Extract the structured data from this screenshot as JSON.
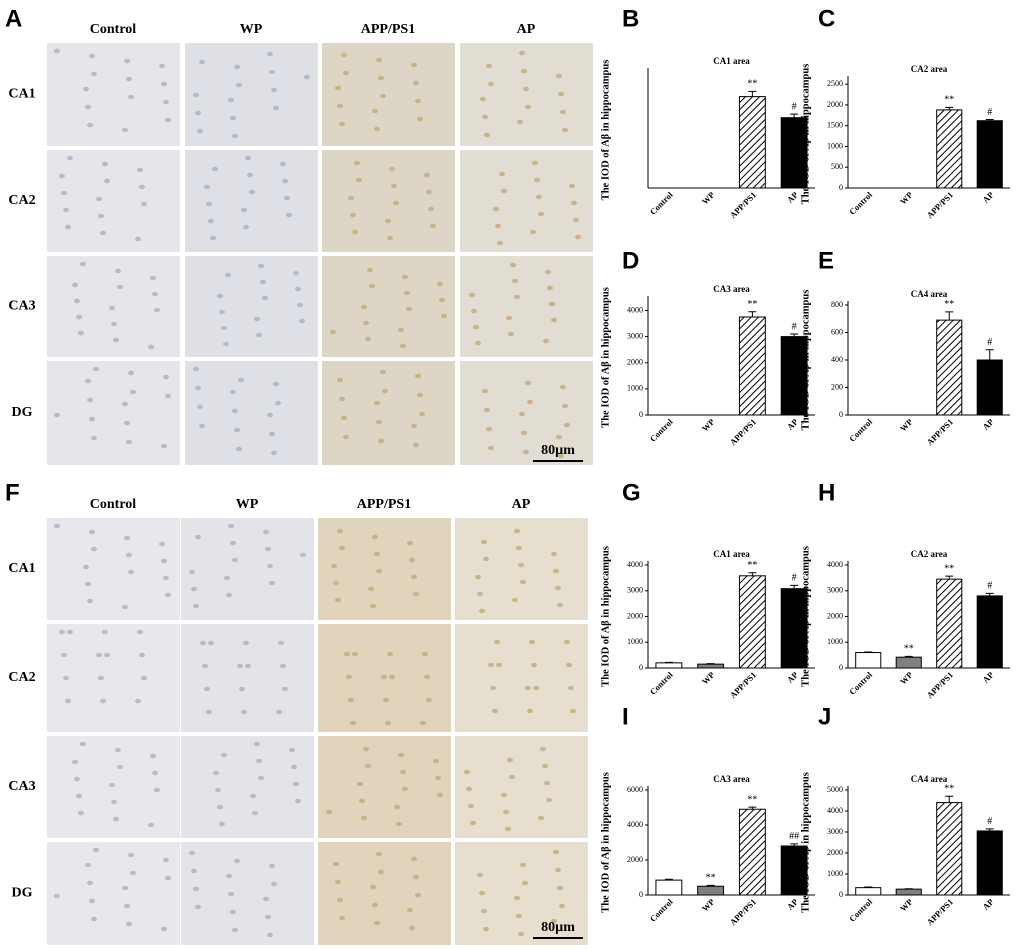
{
  "panels": [
    {
      "letter": "A",
      "columns": [
        "Control",
        "WP",
        "APP/PS1",
        "AP"
      ],
      "rows": [
        "CA1",
        "CA2",
        "CA3",
        "DG"
      ],
      "scale_bar": "80µm"
    },
    {
      "letter": "F",
      "columns": [
        "Control",
        "WP",
        "APP/PS1",
        "AP"
      ],
      "rows": [
        "CA1",
        "CA2",
        "CA3",
        "DG"
      ],
      "scale_bar": "80µm"
    }
  ],
  "chart_data": [
    {
      "type": "bar",
      "letter": "B",
      "title": "CA1 area",
      "y_label": "The IOD of Aβ in hippocampus",
      "categories": [
        "Control",
        "WP",
        "APP/PS1",
        "AP"
      ],
      "values": [
        0,
        0,
        2600,
        2000
      ],
      "errors": [
        0,
        0,
        150,
        100
      ],
      "annotations": [
        null,
        null,
        "**",
        "#"
      ],
      "fills": [
        "#ffffff",
        "#808080",
        "#ffffff",
        "#000000"
      ],
      "hatched": [
        false,
        false,
        true,
        false
      ],
      "ylim": [
        0,
        3300
      ]
    },
    {
      "type": "bar",
      "letter": "C",
      "title": "CA2 area",
      "y_label": "The IOD of Aβ in hippocampus",
      "categories": [
        "Control",
        "WP",
        "APP/PS1",
        "AP"
      ],
      "values": [
        0,
        0,
        1880,
        1620
      ],
      "errors": [
        0,
        0,
        60,
        30
      ],
      "annotations": [
        null,
        null,
        "**",
        "#"
      ],
      "fills": [
        "#ffffff",
        "#808080",
        "#ffffff",
        "#000000"
      ],
      "hatched": [
        false,
        false,
        true,
        false
      ],
      "ylim": [
        0,
        2600
      ],
      "yticks": [
        0,
        500,
        1000,
        1500,
        2000,
        2500
      ]
    },
    {
      "type": "bar",
      "letter": "D",
      "title": "CA3 area",
      "y_label": "The IOD of Aβ in hippocampus",
      "categories": [
        "Control",
        "WP",
        "APP/PS1",
        "AP"
      ],
      "values": [
        0,
        0,
        3750,
        3000
      ],
      "errors": [
        0,
        0,
        200,
        100
      ],
      "annotations": [
        null,
        null,
        "**",
        "#"
      ],
      "fills": [
        "#ffffff",
        "#808080",
        "#ffffff",
        "#000000"
      ],
      "hatched": [
        false,
        false,
        true,
        false
      ],
      "ylim": [
        0,
        4400
      ],
      "yticks": [
        0,
        1000,
        2000,
        3000,
        4000
      ]
    },
    {
      "type": "bar",
      "letter": "E",
      "title": "CA4 area",
      "y_label": "The IOD of Aβ in hippocampus",
      "categories": [
        "Control",
        "WP",
        "APP/PS1",
        "AP"
      ],
      "values": [
        0,
        0,
        690,
        400
      ],
      "errors": [
        0,
        0,
        60,
        75
      ],
      "annotations": [
        null,
        null,
        "**",
        "#"
      ],
      "fills": [
        "#ffffff",
        "#808080",
        "#ffffff",
        "#000000"
      ],
      "hatched": [
        false,
        false,
        true,
        false
      ],
      "ylim": [
        0,
        800
      ],
      "yticks": [
        0,
        200,
        400,
        600,
        800
      ]
    },
    {
      "type": "bar",
      "letter": "G",
      "title": "CA1 area",
      "y_label": "The IOD of Aβ in hippocampus",
      "categories": [
        "Control",
        "WP",
        "APP/PS1",
        "AP"
      ],
      "values": [
        200,
        150,
        3580,
        3080
      ],
      "errors": [
        20,
        20,
        120,
        130
      ],
      "annotations": [
        null,
        null,
        "**",
        "#"
      ],
      "fills": [
        "#ffffff",
        "#808080",
        "#ffffff",
        "#000000"
      ],
      "hatched": [
        false,
        false,
        true,
        false
      ],
      "ylim": [
        0,
        4000
      ],
      "yticks": [
        0,
        1000,
        2000,
        3000,
        4000
      ]
    },
    {
      "type": "bar",
      "letter": "H",
      "title": "CA2 area",
      "y_label": "The IOD of Aβ in hippocampus",
      "categories": [
        "Control",
        "WP",
        "APP/PS1",
        "AP"
      ],
      "values": [
        600,
        420,
        3450,
        2800
      ],
      "errors": [
        20,
        30,
        120,
        100
      ],
      "annotations": [
        null,
        "**",
        "**",
        "#"
      ],
      "fills": [
        "#ffffff",
        "#808080",
        "#ffffff",
        "#000000"
      ],
      "hatched": [
        false,
        false,
        true,
        false
      ],
      "ylim": [
        0,
        4000
      ],
      "yticks": [
        0,
        1000,
        2000,
        3000,
        4000
      ]
    },
    {
      "type": "bar",
      "letter": "I",
      "title": "CA3 area",
      "y_label": "The IOD of Aβ in hippocampus",
      "categories": [
        "Control",
        "WP",
        "APP/PS1",
        "AP"
      ],
      "values": [
        850,
        500,
        4900,
        2800
      ],
      "errors": [
        50,
        50,
        120,
        120
      ],
      "annotations": [
        null,
        "**",
        "**",
        "##"
      ],
      "fills": [
        "#ffffff",
        "#808080",
        "#ffffff",
        "#000000"
      ],
      "hatched": [
        false,
        false,
        true,
        false
      ],
      "ylim": [
        0,
        6000
      ],
      "yticks": [
        0,
        2000,
        4000,
        6000
      ]
    },
    {
      "type": "bar",
      "letter": "J",
      "title": "CA4 area",
      "y_label": "The IOD of Aβ in hippocampus",
      "categories": [
        "Control",
        "WP",
        "APP/PS1",
        "AP"
      ],
      "values": [
        350,
        280,
        4400,
        3050
      ],
      "errors": [
        30,
        20,
        300,
        100
      ],
      "annotations": [
        null,
        null,
        "**",
        "#"
      ],
      "fills": [
        "#ffffff",
        "#808080",
        "#ffffff",
        "#000000"
      ],
      "hatched": [
        false,
        false,
        true,
        false
      ],
      "ylim": [
        0,
        5000
      ],
      "yticks": [
        0,
        1000,
        2000,
        3000,
        4000,
        5000
      ]
    }
  ]
}
